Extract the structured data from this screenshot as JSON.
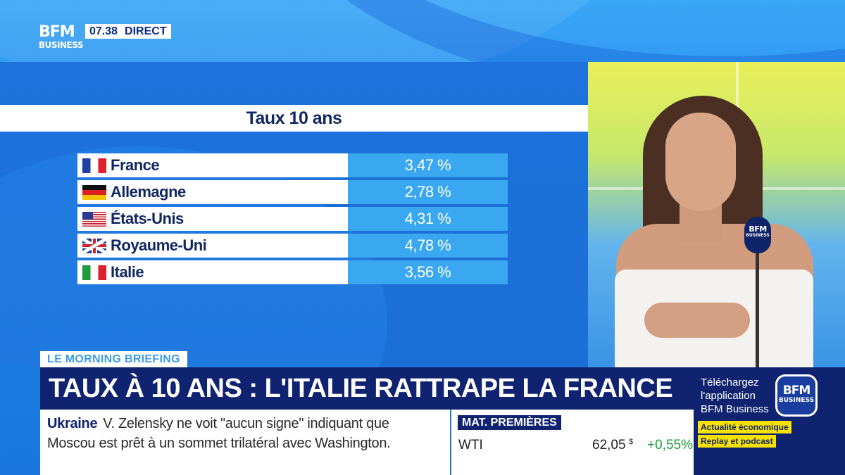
{
  "channel": {
    "logo_line1": "BFM",
    "logo_line2": "BUSINESS",
    "time": "07.38",
    "live_label": "DIRECT"
  },
  "chart_data": {
    "type": "table",
    "title": "Taux 10 ans",
    "rows": [
      {
        "country": "France",
        "flag": "flag-france-icon",
        "value": "3,47 %"
      },
      {
        "country": "Allemagne",
        "flag": "flag-germany-icon",
        "value": "2,78 %"
      },
      {
        "country": "États-Unis",
        "flag": "flag-usa-icon",
        "value": "4,31 %"
      },
      {
        "country": "Royaume-Uni",
        "flag": "flag-uk-icon",
        "value": "4,78 %"
      },
      {
        "country": "Italie",
        "flag": "flag-italy-icon",
        "value": "3,56 %"
      }
    ]
  },
  "microphone": {
    "line1": "BFM",
    "line2": "BUSINESS"
  },
  "program": {
    "tag": "LE MORNING BRIEFING",
    "headline": "TAUX À 10 ANS : L'ITALIE RATTRAPE LA FRANCE"
  },
  "ticker": {
    "keyword": "Ukraine",
    "line1": "V. Zelensky ne voit \"aucun signe\" indiquant que",
    "line2": "Moscou est prêt à un sommet trilatéral avec Washington."
  },
  "markets": {
    "title": "MAT. PREMIÈRES",
    "name": "WTI",
    "value": "62,05",
    "unit": "$",
    "change": "+0,55%"
  },
  "promo": {
    "text": "Téléchargez l'application BFM Business",
    "app_line1": "BFM",
    "app_line2": "BUSINESS",
    "badge1": "Actualité économique",
    "badge2": "Replay et podcast"
  },
  "colors": {
    "navy": "#0f2370",
    "accent_blue": "#3aa7f1",
    "positive": "#1a9a3a",
    "promo_yellow": "#f7e100"
  }
}
